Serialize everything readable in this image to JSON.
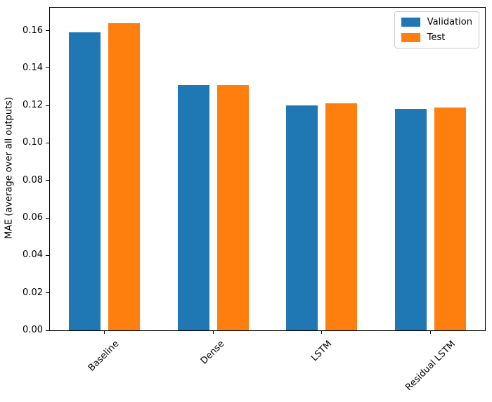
{
  "chart_data": {
    "type": "bar",
    "title": "",
    "xlabel": "",
    "ylabel": "MAE (average over all outputs)",
    "categories": [
      "Baseline",
      "Dense",
      "LSTM",
      "Residual LSTM"
    ],
    "series": [
      {
        "name": "Validation",
        "color": "#1f77b4",
        "values": [
          0.159,
          0.131,
          0.12,
          0.118
        ]
      },
      {
        "name": "Test",
        "color": "#ff7f0e",
        "values": [
          0.164,
          0.131,
          0.121,
          0.119
        ]
      }
    ],
    "ylim": [
      0,
      0.1722
    ],
    "yticks": [
      0.0,
      0.02,
      0.04,
      0.06,
      0.08,
      0.1,
      0.12,
      0.14,
      0.16
    ],
    "ytick_labels": [
      "0.00",
      "0.02",
      "0.04",
      "0.06",
      "0.08",
      "0.10",
      "0.12",
      "0.14",
      "0.16"
    ],
    "xtick_rotation_deg": 45,
    "grid": false,
    "legend": {
      "position": "upper-right"
    }
  }
}
